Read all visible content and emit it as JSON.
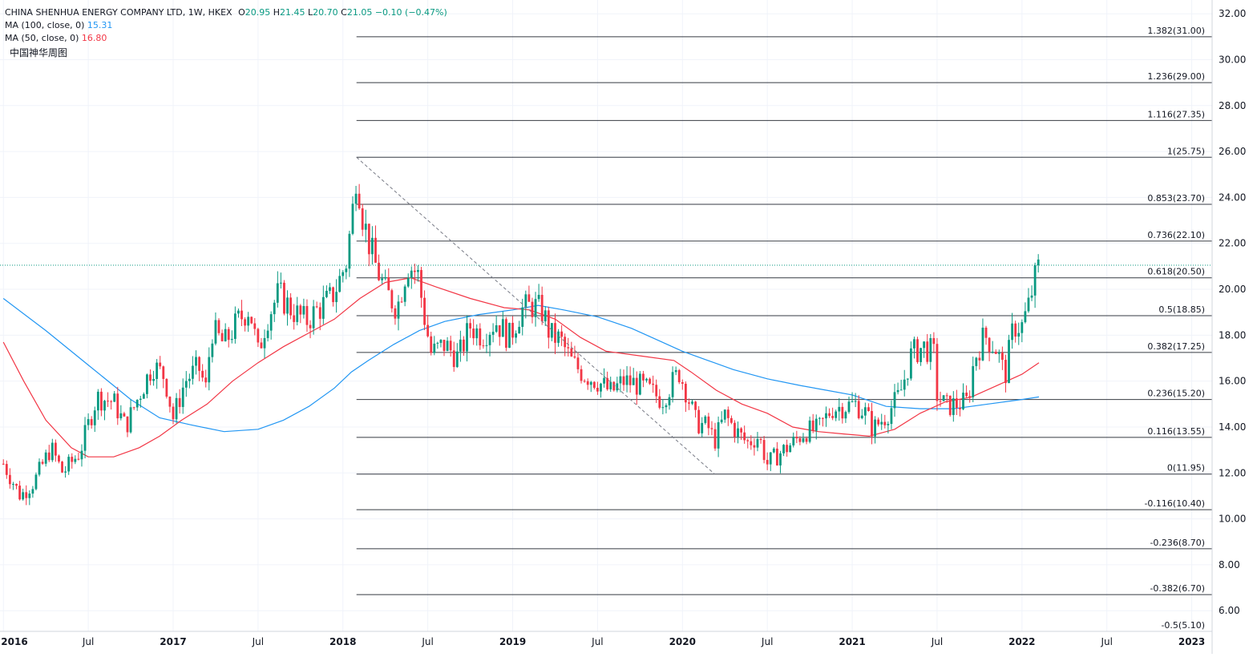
{
  "header": {
    "symbol": "CHINA SHENHUA ENERGY COMPANY LTD, 1W, HKEX",
    "o_label": "O",
    "o_value": "20.95",
    "h_label": "H",
    "h_value": "21.45",
    "l_label": "L",
    "l_value": "20.70",
    "c_label": "C",
    "c_value": "21.05",
    "change": "−0.10 (−0.47%)"
  },
  "indicators": [
    {
      "label": "MA (100, close, 0)",
      "value": "15.31",
      "color": "#2196f3"
    },
    {
      "label": "MA (50, close, 0)",
      "value": "16.80",
      "color": "#f23645"
    }
  ],
  "note": "中国神华周图",
  "colors": {
    "up": "#089981",
    "down": "#f23645",
    "ma100": "#2196f3",
    "ma50": "#f23645",
    "fib": "#131722",
    "grid": "#f0f3fa"
  },
  "chart_data": {
    "type": "candlestick",
    "x_ticks": [
      "2016",
      "Jul",
      "2017",
      "Jul",
      "2018",
      "Jul",
      "2019",
      "Jul",
      "2020",
      "Jul",
      "2021",
      "Jul",
      "2022",
      "Jul",
      "2023"
    ],
    "x_tick_dates": [
      2016.0,
      2016.5,
      2017.0,
      2017.5,
      2018.0,
      2018.5,
      2019.0,
      2019.5,
      2020.0,
      2020.5,
      2021.0,
      2021.5,
      2022.0,
      2022.5,
      2023.0
    ],
    "y_ticks": [
      "32.00",
      "30.00",
      "28.00",
      "26.00",
      "24.00",
      "22.00",
      "20.00",
      "18.00",
      "16.00",
      "14.00",
      "12.00",
      "10.00",
      "8.00",
      "6.00"
    ],
    "y_tick_values": [
      32,
      30,
      28,
      26,
      24,
      22,
      20,
      18,
      16,
      14,
      12,
      10,
      8,
      6
    ],
    "ylim": [
      5.1,
      32.6
    ],
    "xlim": [
      2015.98,
      2023.12
    ],
    "last_price": 21.05,
    "fibonacci": [
      {
        "label": "1.382(31.00)",
        "value": 31.0
      },
      {
        "label": "1.236(29.00)",
        "value": 29.0
      },
      {
        "label": "1.116(27.35)",
        "value": 27.35
      },
      {
        "label": "1(25.75)",
        "value": 25.75
      },
      {
        "label": "0.853(23.70)",
        "value": 23.7
      },
      {
        "label": "0.736(22.10)",
        "value": 22.1
      },
      {
        "label": "0.618(20.50)",
        "value": 20.5
      },
      {
        "label": "0.5(18.85)",
        "value": 18.85
      },
      {
        "label": "0.382(17.25)",
        "value": 17.25
      },
      {
        "label": "0.236(15.20)",
        "value": 15.2
      },
      {
        "label": "0.116(13.55)",
        "value": 13.55
      },
      {
        "label": "0(11.95)",
        "value": 11.95
      },
      {
        "label": "-0.116(10.40)",
        "value": 10.4
      },
      {
        "label": "-0.236(8.70)",
        "value": 8.7
      },
      {
        "label": "-0.382(6.70)",
        "value": 6.7
      },
      {
        "label": "-0.5(5.10)",
        "value": 5.1
      }
    ],
    "fib_start_date": 2018.08,
    "trendline": {
      "x1": 2018.08,
      "y1": 25.75,
      "x2": 2020.19,
      "y2": 11.95
    },
    "price_path": [
      [
        2016.0,
        12.4
      ],
      [
        2016.1,
        11.0
      ],
      [
        2016.18,
        11.6
      ],
      [
        2016.28,
        13.1
      ],
      [
        2016.35,
        12.0
      ],
      [
        2016.45,
        12.9
      ],
      [
        2016.55,
        15.3
      ],
      [
        2016.65,
        15.1
      ],
      [
        2016.72,
        14.0
      ],
      [
        2016.8,
        15.4
      ],
      [
        2016.88,
        16.7
      ],
      [
        2016.95,
        16.2
      ],
      [
        2017.0,
        14.4
      ],
      [
        2017.07,
        16.0
      ],
      [
        2017.15,
        16.6
      ],
      [
        2017.2,
        15.5
      ],
      [
        2017.22,
        18.3
      ],
      [
        2017.3,
        17.6
      ],
      [
        2017.38,
        18.6
      ],
      [
        2017.45,
        19.2
      ],
      [
        2017.5,
        17.2
      ],
      [
        2017.55,
        18.7
      ],
      [
        2017.62,
        19.8
      ],
      [
        2017.7,
        19.1
      ],
      [
        2017.78,
        18.6
      ],
      [
        2017.85,
        19.1
      ],
      [
        2017.93,
        19.6
      ],
      [
        2017.98,
        20.4
      ],
      [
        2018.02,
        21.2
      ],
      [
        2018.06,
        23.6
      ],
      [
        2018.08,
        25.3
      ],
      [
        2018.12,
        23.0
      ],
      [
        2018.18,
        21.3
      ],
      [
        2018.25,
        19.9
      ],
      [
        2018.32,
        19.2
      ],
      [
        2018.38,
        21.1
      ],
      [
        2018.44,
        20.7
      ],
      [
        2018.48,
        18.8
      ],
      [
        2018.52,
        17.2
      ],
      [
        2018.6,
        17.6
      ],
      [
        2018.68,
        17.0
      ],
      [
        2018.75,
        18.4
      ],
      [
        2018.82,
        18.0
      ],
      [
        2018.9,
        18.6
      ],
      [
        2018.98,
        17.9
      ],
      [
        2019.05,
        19.1
      ],
      [
        2019.12,
        19.3
      ],
      [
        2019.18,
        19.0
      ],
      [
        2019.22,
        18.0
      ],
      [
        2019.28,
        17.8
      ],
      [
        2019.35,
        16.8
      ],
      [
        2019.42,
        16.3
      ],
      [
        2019.5,
        16.0
      ],
      [
        2019.58,
        15.5
      ],
      [
        2019.65,
        16.0
      ],
      [
        2019.72,
        15.9
      ],
      [
        2019.8,
        15.6
      ],
      [
        2019.88,
        15.2
      ],
      [
        2019.98,
        16.4
      ],
      [
        2020.02,
        15.6
      ],
      [
        2020.08,
        14.2
      ],
      [
        2020.15,
        14.0
      ],
      [
        2020.19,
        13.4
      ],
      [
        2020.25,
        14.5
      ],
      [
        2020.32,
        13.8
      ],
      [
        2020.38,
        13.3
      ],
      [
        2020.45,
        13.6
      ],
      [
        2020.5,
        12.4
      ],
      [
        2020.58,
        12.9
      ],
      [
        2020.65,
        13.3
      ],
      [
        2020.72,
        13.8
      ],
      [
        2020.8,
        13.9
      ],
      [
        2020.88,
        14.8
      ],
      [
        2020.95,
        14.9
      ],
      [
        2021.02,
        15.0
      ],
      [
        2021.08,
        14.6
      ],
      [
        2021.12,
        13.9
      ],
      [
        2021.2,
        14.5
      ],
      [
        2021.28,
        15.4
      ],
      [
        2021.35,
        17.2
      ],
      [
        2021.42,
        17.5
      ],
      [
        2021.48,
        17.2
      ],
      [
        2021.5,
        15.4
      ],
      [
        2021.55,
        14.9
      ],
      [
        2021.62,
        15.0
      ],
      [
        2021.68,
        15.1
      ],
      [
        2021.72,
        17.0
      ],
      [
        2021.78,
        18.0
      ],
      [
        2021.85,
        17.4
      ],
      [
        2021.9,
        16.2
      ],
      [
        2021.95,
        18.4
      ],
      [
        2022.0,
        18.4
      ],
      [
        2022.04,
        19.3
      ],
      [
        2022.07,
        20.3
      ],
      [
        2022.1,
        21.0
      ]
    ],
    "ma100": [
      [
        2016.0,
        19.6
      ],
      [
        2016.25,
        18.2
      ],
      [
        2016.5,
        16.7
      ],
      [
        2016.75,
        15.2
      ],
      [
        2016.92,
        14.4
      ],
      [
        2017.1,
        14.1
      ],
      [
        2017.3,
        13.8
      ],
      [
        2017.5,
        13.9
      ],
      [
        2017.65,
        14.3
      ],
      [
        2017.8,
        14.9
      ],
      [
        2017.95,
        15.7
      ],
      [
        2018.05,
        16.4
      ],
      [
        2018.15,
        16.9
      ],
      [
        2018.3,
        17.6
      ],
      [
        2018.45,
        18.2
      ],
      [
        2018.6,
        18.6
      ],
      [
        2018.8,
        18.9
      ],
      [
        2019.0,
        19.1
      ],
      [
        2019.15,
        19.3
      ],
      [
        2019.3,
        19.1
      ],
      [
        2019.5,
        18.8
      ],
      [
        2019.7,
        18.3
      ],
      [
        2019.85,
        17.8
      ],
      [
        2020.0,
        17.3
      ],
      [
        2020.15,
        16.9
      ],
      [
        2020.3,
        16.5
      ],
      [
        2020.5,
        16.1
      ],
      [
        2020.7,
        15.8
      ],
      [
        2020.85,
        15.6
      ],
      [
        2021.0,
        15.4
      ],
      [
        2021.2,
        14.9
      ],
      [
        2021.4,
        14.8
      ],
      [
        2021.6,
        14.8
      ],
      [
        2021.8,
        15.0
      ],
      [
        2022.0,
        15.2
      ],
      [
        2022.1,
        15.31
      ]
    ],
    "ma50": [
      [
        2016.0,
        17.7
      ],
      [
        2016.12,
        16.0
      ],
      [
        2016.25,
        14.3
      ],
      [
        2016.4,
        13.1
      ],
      [
        2016.5,
        12.7
      ],
      [
        2016.65,
        12.7
      ],
      [
        2016.8,
        13.1
      ],
      [
        2016.92,
        13.6
      ],
      [
        2017.05,
        14.3
      ],
      [
        2017.2,
        15.0
      ],
      [
        2017.35,
        16.0
      ],
      [
        2017.5,
        16.8
      ],
      [
        2017.65,
        17.5
      ],
      [
        2017.8,
        18.1
      ],
      [
        2017.95,
        18.7
      ],
      [
        2018.1,
        19.6
      ],
      [
        2018.25,
        20.3
      ],
      [
        2018.4,
        20.5
      ],
      [
        2018.55,
        20.1
      ],
      [
        2018.75,
        19.6
      ],
      [
        2018.95,
        19.2
      ],
      [
        2019.1,
        19.1
      ],
      [
        2019.25,
        18.7
      ],
      [
        2019.4,
        17.9
      ],
      [
        2019.55,
        17.3
      ],
      [
        2019.75,
        17.1
      ],
      [
        2019.95,
        16.9
      ],
      [
        2020.05,
        16.4
      ],
      [
        2020.2,
        15.6
      ],
      [
        2020.35,
        15.0
      ],
      [
        2020.5,
        14.6
      ],
      [
        2020.65,
        14.0
      ],
      [
        2020.8,
        13.8
      ],
      [
        2020.95,
        13.7
      ],
      [
        2021.1,
        13.6
      ],
      [
        2021.25,
        13.9
      ],
      [
        2021.4,
        14.6
      ],
      [
        2021.55,
        15.1
      ],
      [
        2021.7,
        15.3
      ],
      [
        2021.85,
        15.8
      ],
      [
        2022.0,
        16.3
      ],
      [
        2022.1,
        16.8
      ]
    ]
  }
}
